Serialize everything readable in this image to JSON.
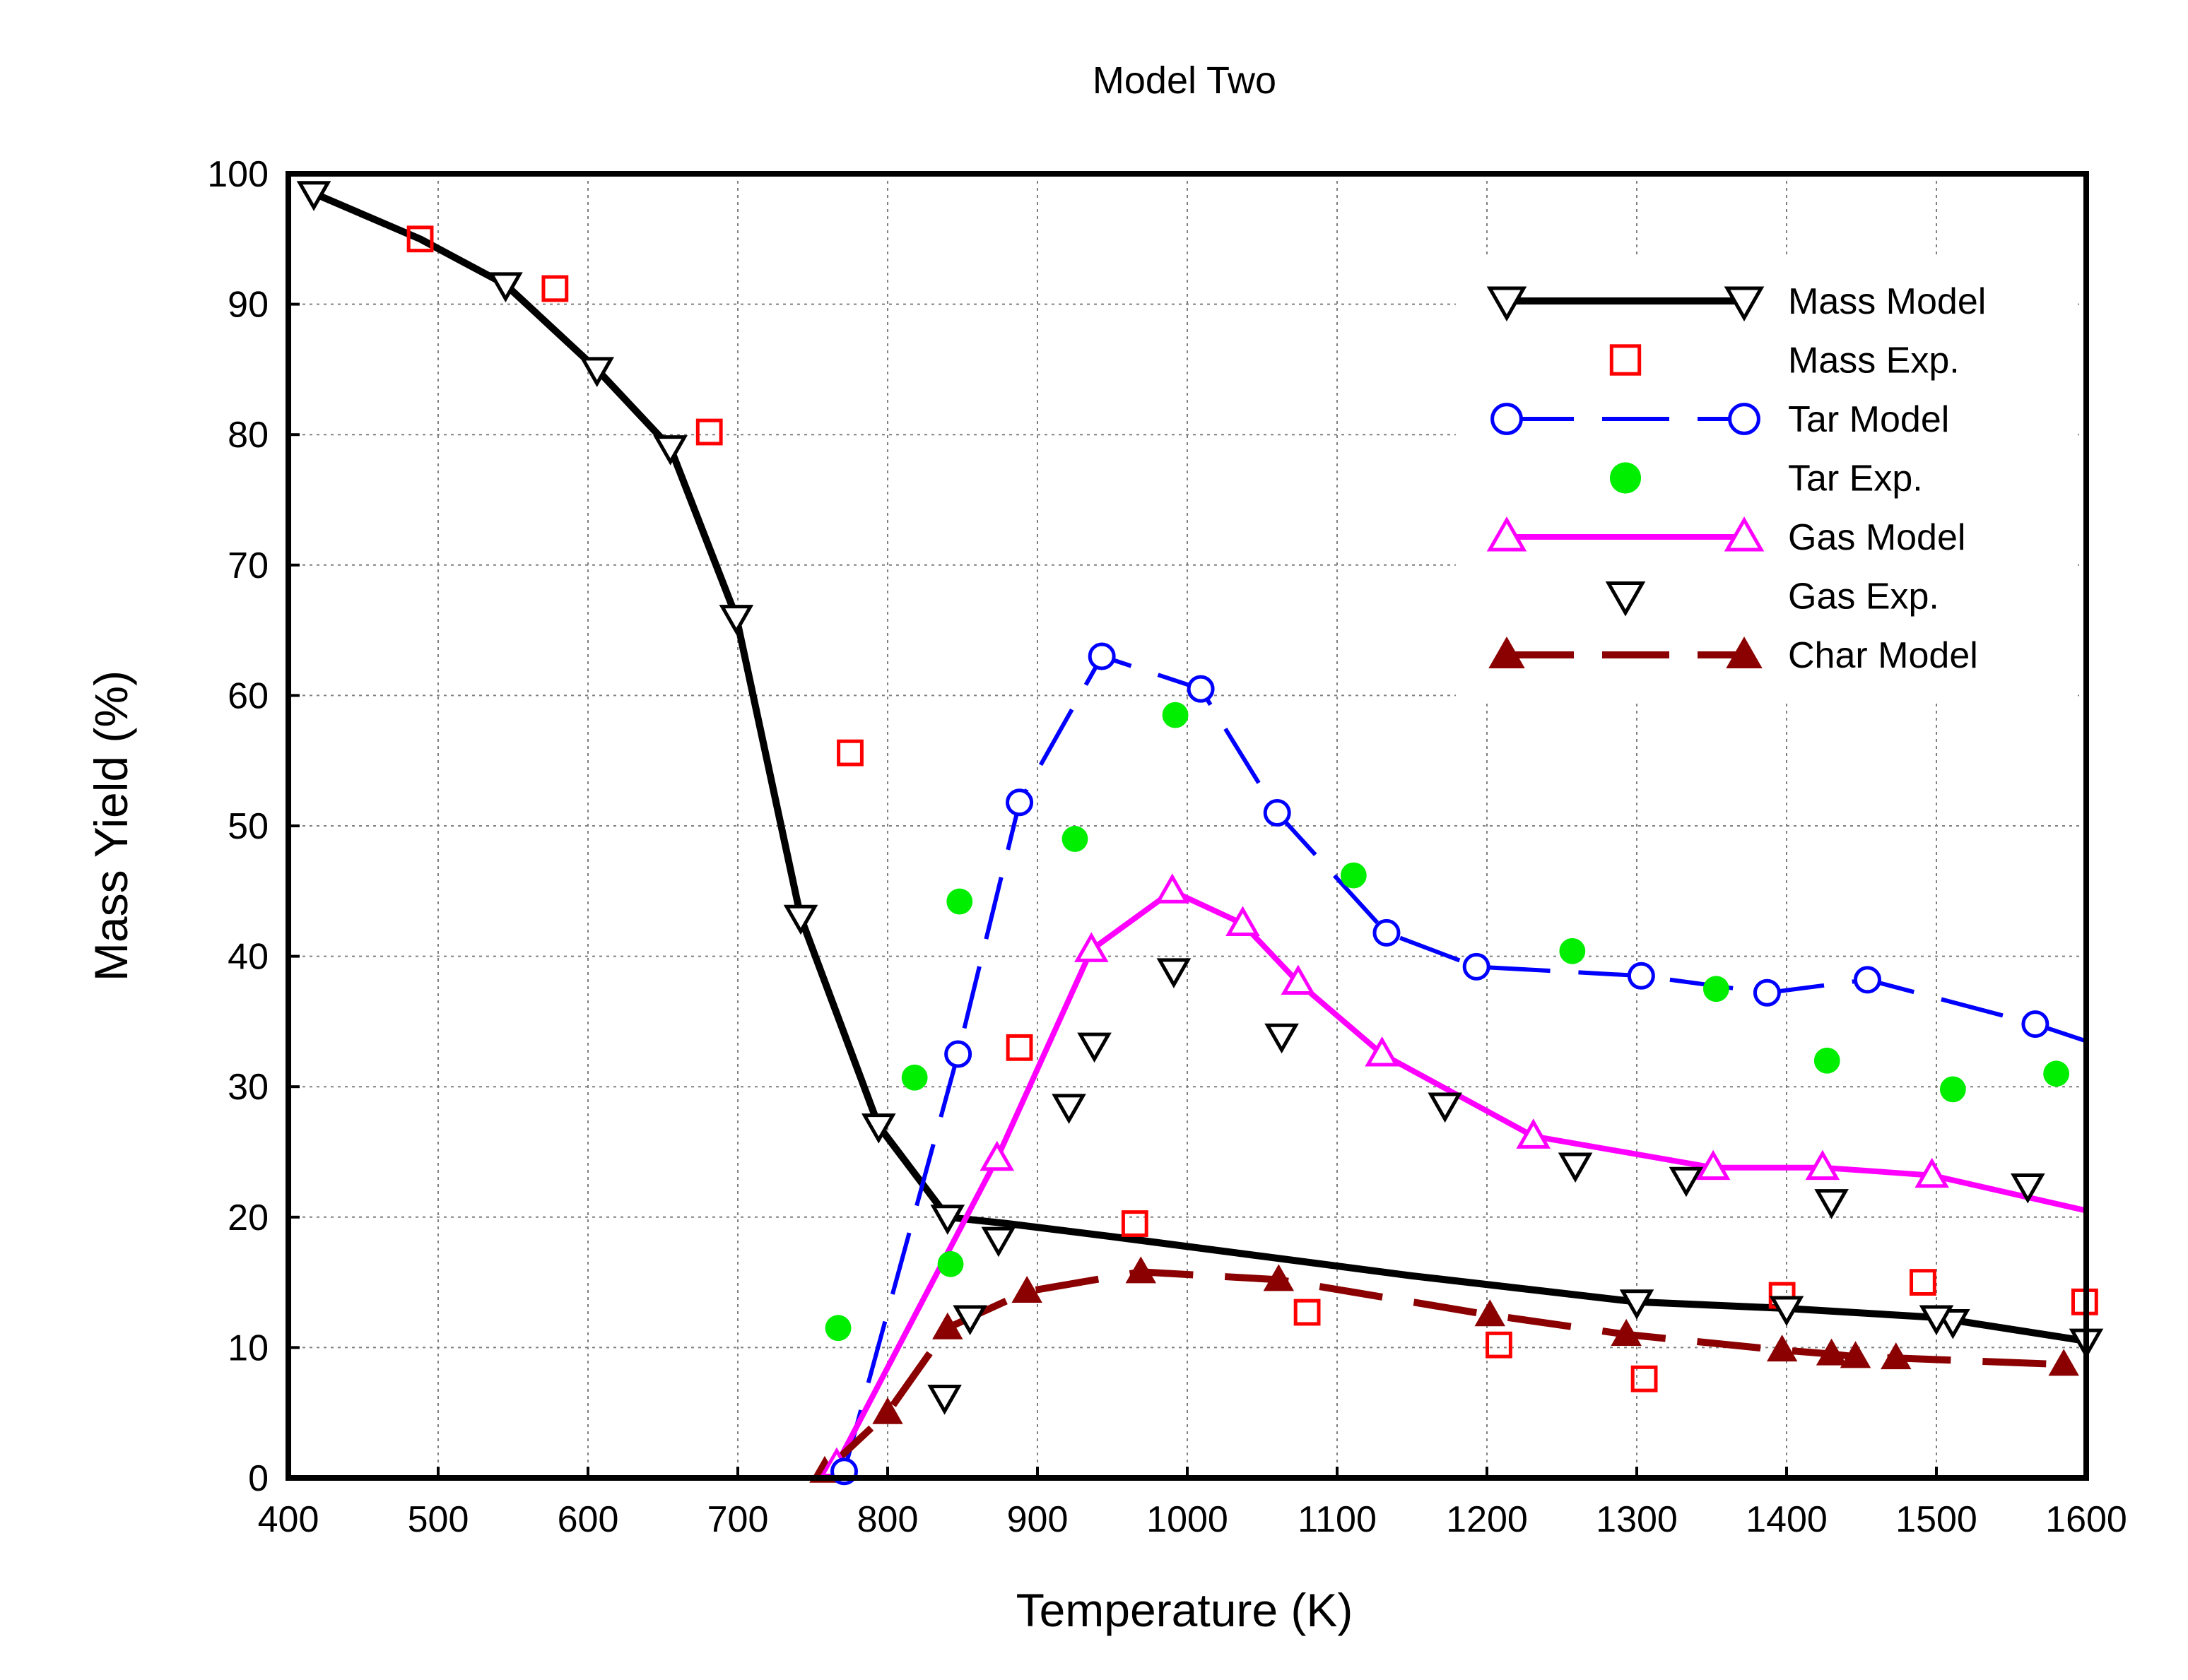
{
  "chart_data": {
    "type": "line",
    "title": "Model Two",
    "xlabel": "Temperature (K)",
    "ylabel": "Mass  Yield (%)",
    "xlim": [
      400,
      1600
    ],
    "ylim": [
      0,
      100
    ],
    "xticks": [
      400,
      500,
      600,
      700,
      800,
      900,
      1000,
      1100,
      1200,
      1300,
      1400,
      1500,
      1600
    ],
    "yticks": [
      0,
      10,
      20,
      30,
      40,
      50,
      60,
      70,
      80,
      90,
      100
    ],
    "grid": true,
    "legend_position": "top-right",
    "series": [
      {
        "name": "Mass Model",
        "color": "#000000",
        "line": "solid",
        "marker": "triangle-down-open",
        "x": [
          417,
          488,
          545,
          606,
          655,
          699,
          742,
          794,
          840,
          880,
          950,
          1050,
          1150,
          1300,
          1400,
          1500,
          1600
        ],
        "y": [
          98.5,
          95,
          91.5,
          85,
          79,
          66,
          43,
          27,
          20,
          19.5,
          18.5,
          17,
          15.5,
          13.5,
          13,
          12.3,
          10.5
        ],
        "markers_x": [
          417,
          545,
          606,
          655,
          699,
          742,
          794,
          840,
          1300,
          1400,
          1500,
          1600
        ],
        "markers_y": [
          98.5,
          91.5,
          85,
          79,
          66,
          43,
          27,
          20,
          13.5,
          13,
          12.3,
          10.5
        ]
      },
      {
        "name": "Mass Exp.",
        "color": "#ff0000",
        "line": "none",
        "marker": "square-open",
        "x": [
          488,
          578,
          681,
          775,
          888,
          965,
          1080,
          1208,
          1305,
          1397,
          1491,
          1599
        ],
        "y": [
          95,
          91.2,
          80.2,
          55.6,
          33,
          19.5,
          12.7,
          10.2,
          7.6,
          14,
          15,
          13.5
        ]
      },
      {
        "name": "Tar Model",
        "color": "#0000ff",
        "line": "dashed",
        "marker": "circle-open",
        "x": [
          771,
          847,
          888,
          943,
          1009,
          1060,
          1133,
          1193,
          1303,
          1387,
          1454,
          1566,
          1600
        ],
        "y": [
          0.5,
          32.5,
          51.8,
          63,
          60.5,
          51,
          41.8,
          39.2,
          38.5,
          37.2,
          38.2,
          34.8,
          33.5
        ],
        "markers_x": [
          771,
          847,
          888,
          943,
          1009,
          1060,
          1133,
          1193,
          1303,
          1387,
          1454,
          1566
        ],
        "markers_y": [
          0.5,
          32.5,
          51.8,
          63,
          60.5,
          51,
          41.8,
          39.2,
          38.5,
          37.2,
          38.2,
          34.8
        ]
      },
      {
        "name": "Tar Exp.",
        "color": "#00ee00",
        "line": "none",
        "marker": "circle-filled",
        "x": [
          767,
          818,
          842,
          848,
          925,
          992,
          1111,
          1257,
          1353,
          1427,
          1511,
          1580
        ],
        "y": [
          11.5,
          30.7,
          16.4,
          44.2,
          49,
          58.5,
          46.2,
          40.4,
          37.5,
          32,
          29.8,
          31
        ]
      },
      {
        "name": "Gas Model",
        "color": "#ff00ff",
        "line": "solid",
        "marker": "triangle-up-open",
        "x": [
          766,
          873,
          936,
          990,
          1037,
          1074,
          1130,
          1231,
          1351,
          1424,
          1497,
          1600
        ],
        "y": [
          1,
          24.5,
          40.5,
          45,
          42.5,
          38,
          32.5,
          26.2,
          23.8,
          23.8,
          23.2,
          20.5
        ],
        "markers_x": [
          766,
          873,
          936,
          990,
          1037,
          1074,
          1130,
          1231,
          1351,
          1424,
          1497
        ],
        "markers_y": [
          1,
          24.5,
          40.5,
          45,
          42.5,
          38,
          32.5,
          26.2,
          23.8,
          23.8,
          23.2
        ]
      },
      {
        "name": "Gas Exp.",
        "color": "#000000",
        "line": "none",
        "marker": "triangle-down-open",
        "x": [
          838,
          855,
          874,
          921,
          938,
          991,
          1063,
          1172,
          1259,
          1333,
          1430,
          1511,
          1561
        ],
        "y": [
          6.2,
          12.3,
          18.3,
          28.5,
          33.2,
          38.9,
          33.9,
          28.6,
          24,
          22.9,
          21.2,
          12,
          22.4
        ]
      },
      {
        "name": "Char Model",
        "color": "#8b0000",
        "line": "dashed",
        "marker": "triangle-up-filled",
        "x": [
          758,
          800,
          840,
          893,
          969,
          1061,
          1202,
          1293,
          1397,
          1430,
          1446,
          1473,
          1585
        ],
        "y": [
          0.5,
          5,
          11.5,
          14.3,
          15.8,
          15.2,
          12.5,
          11,
          9.8,
          9.5,
          9.3,
          9.2,
          8.7
        ]
      }
    ]
  }
}
